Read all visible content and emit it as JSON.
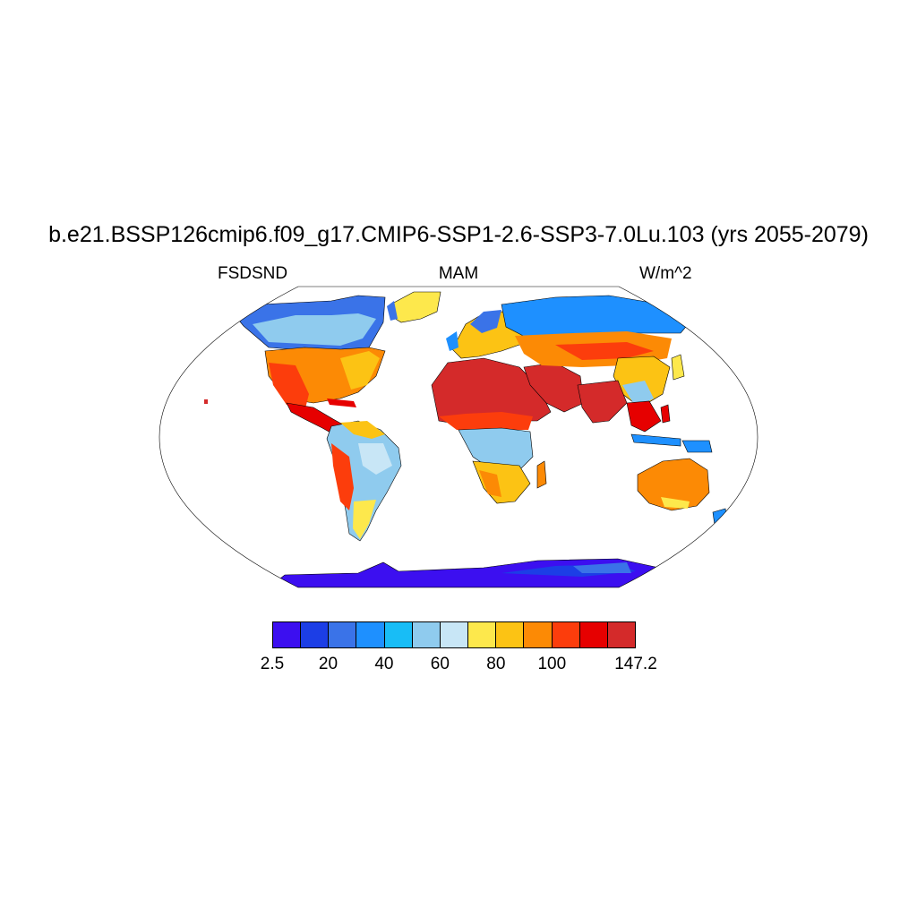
{
  "title": "b.e21.BSSP126cmip6.f09_g17.CMIP6-SSP1-2.6-SSP3-7.0Lu.103 (yrs 2055-2079)",
  "left_label": "FSDSND",
  "center_label": "MAM",
  "right_label": "W/m^2",
  "colorbar": {
    "colors": [
      "#3c0ff0",
      "#1c3ee6",
      "#3a73e8",
      "#1e90ff",
      "#18bdf6",
      "#8fcbee",
      "#c8e6f6",
      "#fde84c",
      "#fcc314",
      "#fc8a05",
      "#fc3d0c",
      "#e60000",
      "#d42a2a"
    ],
    "tick_labels": [
      "2.5",
      "20",
      "40",
      "60",
      "80",
      "100",
      "147.2"
    ]
  },
  "legend_colors": {
    "ocean_background": "#ffffff",
    "coastline": "#000000"
  }
}
